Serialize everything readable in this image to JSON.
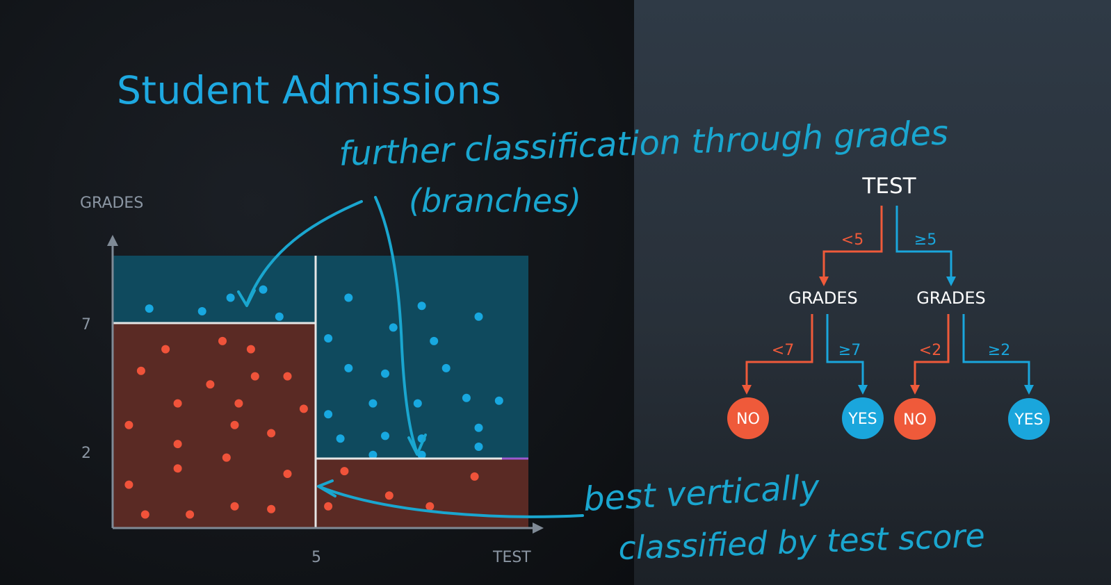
{
  "title": "Student Admissions",
  "chart": {
    "y_axis_label": "GRADES",
    "x_axis_label": "TEST",
    "y_ticks": [
      "7",
      "2"
    ],
    "x_ticks": [
      "5"
    ],
    "colors": {
      "blue_region": "#0f4a5e",
      "red_region": "#5a2a24",
      "blue_point": "#18a8e0",
      "red_point": "#f0533a",
      "boundary": "#e6e6e6",
      "axis": "#7f8a96"
    },
    "red_points": [
      [
        1.3,
        6.6
      ],
      [
        2.7,
        6.9
      ],
      [
        3.4,
        6.6
      ],
      [
        0.7,
        5.8
      ],
      [
        3.5,
        5.6
      ],
      [
        4.3,
        5.6
      ],
      [
        2.4,
        5.3
      ],
      [
        1.6,
        4.6
      ],
      [
        3.1,
        4.6
      ],
      [
        4.7,
        4.4
      ],
      [
        0.4,
        3.8
      ],
      [
        3.0,
        3.8
      ],
      [
        3.9,
        3.5
      ],
      [
        1.6,
        3.1
      ],
      [
        2.8,
        2.6
      ],
      [
        1.6,
        2.2
      ],
      [
        4.3,
        2.0
      ],
      [
        0.4,
        1.6
      ],
      [
        3.0,
        0.8
      ],
      [
        3.9,
        0.7
      ],
      [
        0.8,
        0.5
      ],
      [
        1.9,
        0.5
      ],
      [
        5.7,
        2.1
      ],
      [
        8.9,
        1.9
      ],
      [
        6.8,
        1.2
      ],
      [
        7.8,
        0.8
      ],
      [
        5.3,
        0.8
      ]
    ],
    "blue_points": [
      [
        0.9,
        8.1
      ],
      [
        2.2,
        8.0
      ],
      [
        2.9,
        8.5
      ],
      [
        3.7,
        8.8
      ],
      [
        4.1,
        7.8
      ],
      [
        5.8,
        8.5
      ],
      [
        7.6,
        8.2
      ],
      [
        9.0,
        7.8
      ],
      [
        6.9,
        7.4
      ],
      [
        5.3,
        7.0
      ],
      [
        7.9,
        6.9
      ],
      [
        5.8,
        5.9
      ],
      [
        6.7,
        5.7
      ],
      [
        8.2,
        5.9
      ],
      [
        8.7,
        4.8
      ],
      [
        9.5,
        4.7
      ],
      [
        6.4,
        4.6
      ],
      [
        7.5,
        4.6
      ],
      [
        5.3,
        4.2
      ],
      [
        9.0,
        3.7
      ],
      [
        5.6,
        3.3
      ],
      [
        6.7,
        3.4
      ],
      [
        7.6,
        3.3
      ],
      [
        9.0,
        3.0
      ],
      [
        6.4,
        2.7
      ],
      [
        7.6,
        2.7
      ]
    ]
  },
  "tree": {
    "root": "TEST",
    "left_branch": "<5",
    "right_branch": "≥5",
    "left_node": "GRADES",
    "right_node": "GRADES",
    "ll_branch": "<7",
    "lr_branch": "≥7",
    "rl_branch": "<2",
    "rr_branch": "≥2",
    "leaves": [
      "NO",
      "YES",
      "NO",
      "YES"
    ],
    "colors": {
      "no": "#ef5a3a",
      "yes": "#1aa6dc",
      "node_text": "#ffffff"
    }
  },
  "annotations": {
    "top_line1": "further classification through grades",
    "top_line2": "(branches)",
    "bottom_line1": "best vertically",
    "bottom_line2": "classified by test score",
    "color": "#1aa6cf"
  }
}
